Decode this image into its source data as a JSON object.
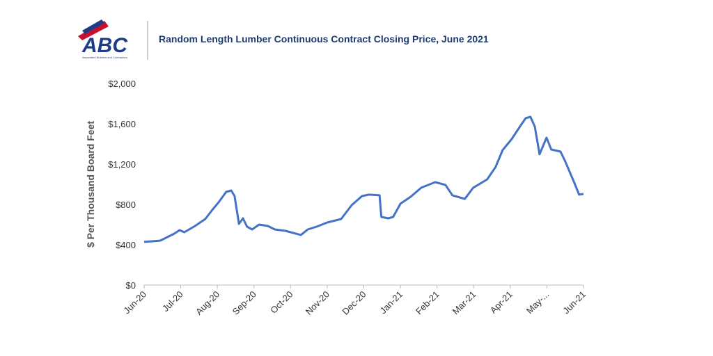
{
  "logo": {
    "name": "ABC",
    "tagline": "Associated Builders and Contractors"
  },
  "chart_data": {
    "type": "line",
    "title": "Random Length Lumber Continuous Contract Closing Price, June 2021",
    "y_label": "$ Per Thousand Board Feet",
    "xlim": [
      0,
      12
    ],
    "xticks": [
      {
        "value": 0,
        "label": "Jun-20"
      },
      {
        "value": 1,
        "label": "Jul-20"
      },
      {
        "value": 2,
        "label": "Aug-20"
      },
      {
        "value": 3,
        "label": "Sep-20"
      },
      {
        "value": 4,
        "label": "Oct-20"
      },
      {
        "value": 5,
        "label": "Nov-20"
      },
      {
        "value": 6,
        "label": "Dec-20"
      },
      {
        "value": 7,
        "label": "Jan-21"
      },
      {
        "value": 8,
        "label": "Feb-21"
      },
      {
        "value": 9,
        "label": "Mar-21"
      },
      {
        "value": 10,
        "label": "Apr-21"
      },
      {
        "value": 11,
        "label": "May-..."
      },
      {
        "value": 12,
        "label": "Jun-21"
      }
    ],
    "ylim": [
      0,
      2000
    ],
    "yticks": [
      {
        "value": 0,
        "label": "$0"
      },
      {
        "value": 400,
        "label": "$400"
      },
      {
        "value": 800,
        "label": "$800"
      },
      {
        "value": 1200,
        "label": "$1,200"
      },
      {
        "value": 1600,
        "label": "$1,600"
      },
      {
        "value": 2000,
        "label": "$2,000"
      }
    ],
    "grid": false,
    "color": "#4472c4",
    "x": [
      0,
      0.44,
      0.82,
      0.97,
      1.1,
      1.39,
      1.67,
      1.86,
      2.05,
      2.24,
      2.38,
      2.47,
      2.59,
      2.7,
      2.81,
      2.95,
      3.14,
      3.38,
      3.57,
      3.86,
      4.28,
      4.47,
      4.71,
      5.0,
      5.38,
      5.67,
      5.95,
      6.14,
      6.43,
      6.48,
      6.67,
      6.8,
      7.0,
      7.28,
      7.57,
      7.95,
      8.23,
      8.42,
      8.76,
      8.99,
      9.37,
      9.6,
      9.79,
      10.04,
      10.29,
      10.42,
      10.55,
      10.67,
      10.8,
      10.99,
      11.12,
      11.37,
      11.5,
      11.75,
      11.88,
      12
    ],
    "values": [
      428,
      441,
      510,
      545,
      524,
      586,
      655,
      745,
      828,
      924,
      938,
      883,
      607,
      662,
      579,
      552,
      600,
      586,
      552,
      538,
      497,
      552,
      579,
      621,
      655,
      793,
      883,
      897,
      890,
      676,
      662,
      676,
      807,
      876,
      966,
      1021,
      993,
      890,
      855,
      966,
      1048,
      1172,
      1338,
      1448,
      1586,
      1655,
      1669,
      1572,
      1297,
      1462,
      1345,
      1324,
      1228,
      1014,
      897,
      904
    ]
  }
}
